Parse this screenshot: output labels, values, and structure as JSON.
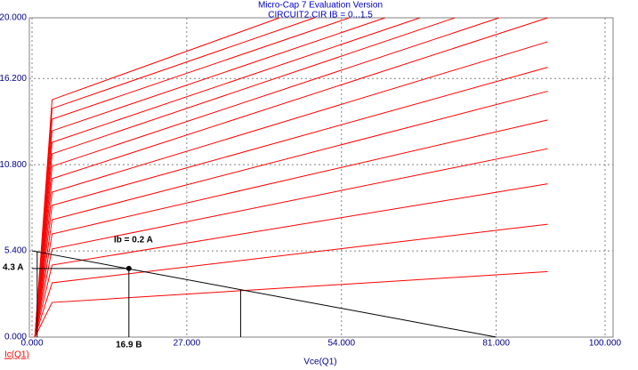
{
  "chart_data": {
    "type": "line",
    "title": "Micro-Cap 7 Evaluation Version",
    "subtitle": "CIRCUIT2.CIR IB = 0...1.5",
    "xlabel": "Vce(Q1)",
    "ylabel": "Ic(Q1)",
    "xlim": [
      0,
      100
    ],
    "ylim": [
      0,
      20
    ],
    "xticks": [
      {
        "value": 0,
        "label": "0.000"
      },
      {
        "value": 27,
        "label": "27.000"
      },
      {
        "value": 54,
        "label": "54.000"
      },
      {
        "value": 81,
        "label": "81.000"
      },
      {
        "value": 100,
        "label": "100.000"
      }
    ],
    "yticks": [
      {
        "value": 0,
        "label": "0.000"
      },
      {
        "value": 5.4,
        "label": "5.400"
      },
      {
        "value": 10.8,
        "label": "10.800"
      },
      {
        "value": 16.2,
        "label": "16.200"
      },
      {
        "value": 20,
        "label": "20.000"
      }
    ],
    "grid": true,
    "series": [
      {
        "color": "#ff0000",
        "x": [
          0.5,
          3.5,
          90
        ],
        "values": [
          0,
          2.17,
          4.1
        ]
      },
      {
        "color": "#ff0000",
        "x": [
          0.5,
          3.5,
          90
        ],
        "values": [
          0,
          3.4,
          7.07
        ]
      },
      {
        "color": "#ff0000",
        "x": [
          0.5,
          3.5,
          90
        ],
        "values": [
          0,
          4.51,
          9.6
        ]
      },
      {
        "color": "#ff0000",
        "x": [
          0.5,
          3.5,
          90
        ],
        "values": [
          0,
          5.52,
          11.8
        ]
      },
      {
        "color": "#ff0000",
        "x": [
          0.5,
          3.5,
          90
        ],
        "values": [
          0,
          6.46,
          13.6
        ]
      },
      {
        "color": "#ff0000",
        "x": [
          0.5,
          3.5,
          90
        ],
        "values": [
          0,
          7.35,
          15.4
        ]
      },
      {
        "color": "#ff0000",
        "x": [
          0.5,
          3.5,
          90
        ],
        "values": [
          0,
          8.25,
          16.9
        ]
      },
      {
        "color": "#ff0000",
        "x": [
          0.5,
          3.5,
          90
        ],
        "values": [
          0,
          9.08,
          18.5
        ]
      },
      {
        "color": "#ff0000",
        "x": [
          0.5,
          3.5,
          90
        ],
        "values": [
          0,
          9.92,
          20
        ]
      },
      {
        "color": "#ff0000",
        "x": [
          0.5,
          3.5,
          81.5
        ],
        "values": [
          0,
          10.7,
          20
        ]
      },
      {
        "color": "#ff0000",
        "x": [
          0.5,
          3.5,
          73.8
        ],
        "values": [
          0,
          11.48,
          20
        ]
      },
      {
        "color": "#ff0000",
        "x": [
          0.5,
          3.5,
          67.7
        ],
        "values": [
          0,
          12.2,
          20
        ]
      },
      {
        "color": "#ff0000",
        "x": [
          0.5,
          3.5,
          61.6
        ],
        "values": [
          0,
          12.92,
          20
        ]
      },
      {
        "color": "#ff0000",
        "x": [
          0.5,
          3.5,
          55.4
        ],
        "values": [
          0,
          13.65,
          20
        ]
      },
      {
        "color": "#ff0000",
        "x": [
          0.5,
          3.5,
          49.3
        ],
        "values": [
          0,
          14.32,
          20
        ]
      },
      {
        "color": "#ff0000",
        "x": [
          0.5,
          3.5,
          43.2
        ],
        "values": [
          0,
          14.87,
          20
        ]
      },
      {
        "color": "#000000",
        "x": [
          0,
          81
        ],
        "values": [
          5.4,
          0
        ]
      },
      {
        "color": "#000000",
        "x": [
          0,
          16.9
        ],
        "values": [
          4.3,
          4.3
        ]
      },
      {
        "color": "#000000",
        "x": [
          16.9,
          16.9
        ],
        "values": [
          4.3,
          0
        ]
      },
      {
        "color": "#000000",
        "x": [
          36.4,
          36.4
        ],
        "values": [
          2.95,
          0
        ]
      },
      {
        "color": "#000000",
        "x": [
          0.9,
          0.9
        ],
        "values": [
          5.4,
          0
        ]
      }
    ],
    "operating_point": {
      "x": 16.9,
      "y": 4.3
    },
    "annotations": [
      "Ib = 0.2 A",
      "4.3 A",
      "16.9 B"
    ]
  }
}
